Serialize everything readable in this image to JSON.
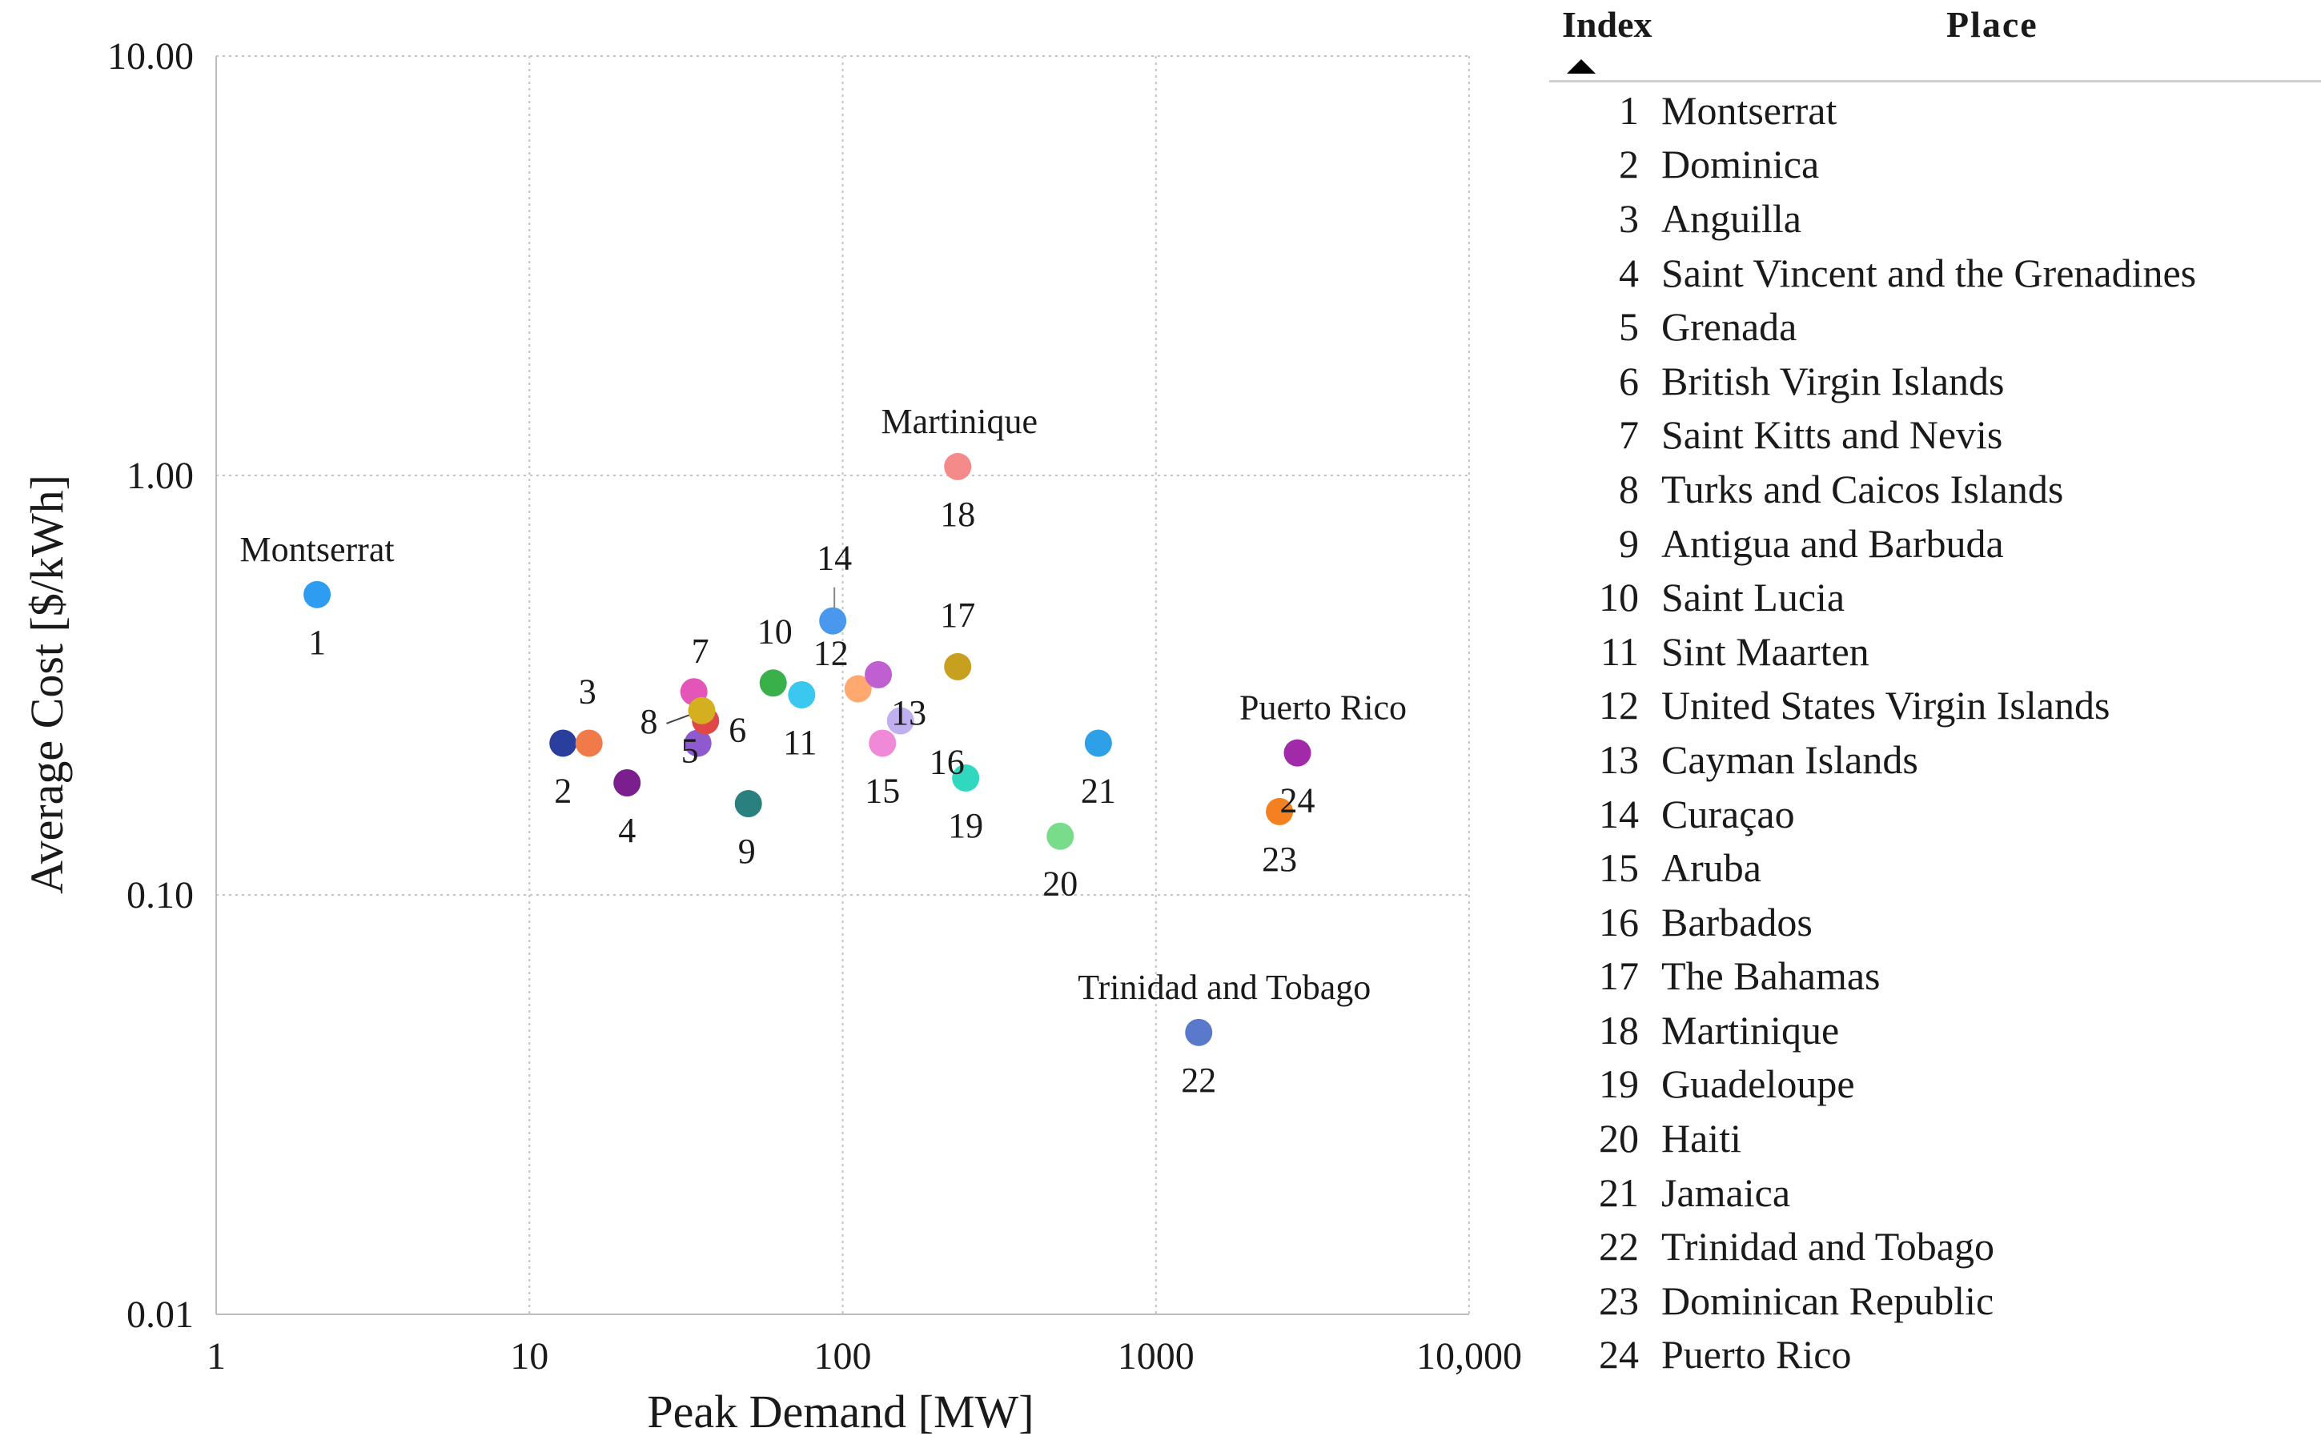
{
  "chart_data": {
    "type": "scatter",
    "title": "",
    "xlabel": "Peak Demand [MW]",
    "ylabel": "Average Cost [$/kWh]",
    "xscale": "log",
    "yscale": "log",
    "xlim": [
      1,
      10000
    ],
    "ylim": [
      0.01,
      10
    ],
    "grid": true,
    "xticks": [
      {
        "value": 1,
        "label": "1"
      },
      {
        "value": 10,
        "label": "10"
      },
      {
        "value": 100,
        "label": "100"
      },
      {
        "value": 1000,
        "label": "1000"
      },
      {
        "value": 10000,
        "label": "10,000"
      }
    ],
    "yticks": [
      {
        "value": 10,
        "label": "10.00"
      },
      {
        "value": 1,
        "label": "1.00"
      },
      {
        "value": 0.1,
        "label": "0.10"
      },
      {
        "value": 0.01,
        "label": "0.01"
      }
    ],
    "points": [
      {
        "index": 1,
        "label": "1",
        "name": "Montserrat",
        "x": 2.1,
        "y": 0.52,
        "color": "#2e9cf0"
      },
      {
        "index": 2,
        "label": "2",
        "name": "Dominica",
        "x": 12.8,
        "y": 0.23,
        "color": "#2a3e9e"
      },
      {
        "index": 3,
        "label": "3",
        "name": "Anguilla",
        "x": 15.5,
        "y": 0.23,
        "color": "#f07a4a"
      },
      {
        "index": 4,
        "label": "4",
        "name": "Saint Vincent and the Grenadines",
        "x": 20.5,
        "y": 0.185,
        "color": "#7b1f8f"
      },
      {
        "index": 5,
        "label": "5",
        "name": "Grenada",
        "x": 34.5,
        "y": 0.23,
        "color": "#8e5ad0"
      },
      {
        "index": 6,
        "label": "6",
        "name": "British Virgin Islands",
        "x": 36.5,
        "y": 0.26,
        "color": "#e04848"
      },
      {
        "index": 7,
        "label": "7",
        "name": "Saint Kitts and Nevis",
        "x": 33.5,
        "y": 0.305,
        "color": "#e455b8"
      },
      {
        "index": 8,
        "label": "8",
        "name": "Turks and Caicos Islands",
        "x": 35.5,
        "y": 0.275,
        "color": "#d4b020"
      },
      {
        "index": 9,
        "label": "9",
        "name": "Antigua and Barbuda",
        "x": 50,
        "y": 0.165,
        "color": "#2a7f7f"
      },
      {
        "index": 10,
        "label": "10",
        "name": "Saint Lucia",
        "x": 60,
        "y": 0.32,
        "color": "#3ab04a"
      },
      {
        "index": 11,
        "label": "11",
        "name": "Sint Maarten",
        "x": 74,
        "y": 0.3,
        "color": "#3ac8f0"
      },
      {
        "index": 12,
        "label": "12",
        "name": "United States Virgin Islands",
        "x": 112,
        "y": 0.31,
        "color": "#ffa870"
      },
      {
        "index": 13,
        "label": "13",
        "name": "Cayman Islands",
        "x": 130,
        "y": 0.335,
        "color": "#c060d0"
      },
      {
        "index": 14,
        "label": "14",
        "name": "Curaçao",
        "x": 93,
        "y": 0.45,
        "color": "#4a98ee"
      },
      {
        "index": 15,
        "label": "15",
        "name": "Aruba",
        "x": 134,
        "y": 0.23,
        "color": "#f08ad8"
      },
      {
        "index": 16,
        "label": "16",
        "name": "Barbados",
        "x": 153,
        "y": 0.26,
        "color": "#c0b0f0"
      },
      {
        "index": 17,
        "label": "17",
        "name": "The Bahamas",
        "x": 233,
        "y": 0.35,
        "color": "#c8a020"
      },
      {
        "index": 18,
        "label": "18",
        "name": "Martinique",
        "x": 233,
        "y": 1.05,
        "color": "#f58a8a"
      },
      {
        "index": 19,
        "label": "19",
        "name": "Guadeloupe",
        "x": 247,
        "y": 0.19,
        "color": "#30d8c0"
      },
      {
        "index": 20,
        "label": "20",
        "name": "Haiti",
        "x": 495,
        "y": 0.138,
        "color": "#78dc8a"
      },
      {
        "index": 21,
        "label": "21",
        "name": "Jamaica",
        "x": 655,
        "y": 0.23,
        "color": "#2ea0e8"
      },
      {
        "index": 22,
        "label": "22",
        "name": "Trinidad and Tobago",
        "x": 1370,
        "y": 0.047,
        "color": "#5a78cc"
      },
      {
        "index": 23,
        "label": "23",
        "name": "Dominican Republic",
        "x": 2480,
        "y": 0.158,
        "color": "#f58020"
      },
      {
        "index": 24,
        "label": "24",
        "name": "Puerto Rico",
        "x": 2830,
        "y": 0.218,
        "color": "#a02aa8"
      }
    ],
    "callouts": [
      "Montserrat",
      "Martinique",
      "Puerto Rico",
      "Trinidad and Tobago"
    ]
  },
  "legend": {
    "header_index": "Index",
    "header_place": "Place",
    "rows": [
      {
        "index": "1",
        "place": "Montserrat"
      },
      {
        "index": "2",
        "place": "Dominica"
      },
      {
        "index": "3",
        "place": "Anguilla"
      },
      {
        "index": "4",
        "place": "Saint Vincent and the Grenadines"
      },
      {
        "index": "5",
        "place": "Grenada"
      },
      {
        "index": "6",
        "place": "British Virgin Islands"
      },
      {
        "index": "7",
        "place": "Saint Kitts and Nevis"
      },
      {
        "index": "8",
        "place": "Turks and Caicos Islands"
      },
      {
        "index": "9",
        "place": "Antigua and Barbuda"
      },
      {
        "index": "10",
        "place": "Saint Lucia"
      },
      {
        "index": "11",
        "place": "Sint Maarten"
      },
      {
        "index": "12",
        "place": "United States Virgin Islands"
      },
      {
        "index": "13",
        "place": "Cayman Islands"
      },
      {
        "index": "14",
        "place": "Curaçao"
      },
      {
        "index": "15",
        "place": "Aruba"
      },
      {
        "index": "16",
        "place": "Barbados"
      },
      {
        "index": "17",
        "place": "The Bahamas"
      },
      {
        "index": "18",
        "place": "Martinique"
      },
      {
        "index": "19",
        "place": "Guadeloupe"
      },
      {
        "index": "20",
        "place": "Haiti"
      },
      {
        "index": "21",
        "place": "Jamaica"
      },
      {
        "index": "22",
        "place": "Trinidad and Tobago"
      },
      {
        "index": "23",
        "place": "Dominican Republic"
      },
      {
        "index": "24",
        "place": "Puerto Rico"
      }
    ]
  }
}
